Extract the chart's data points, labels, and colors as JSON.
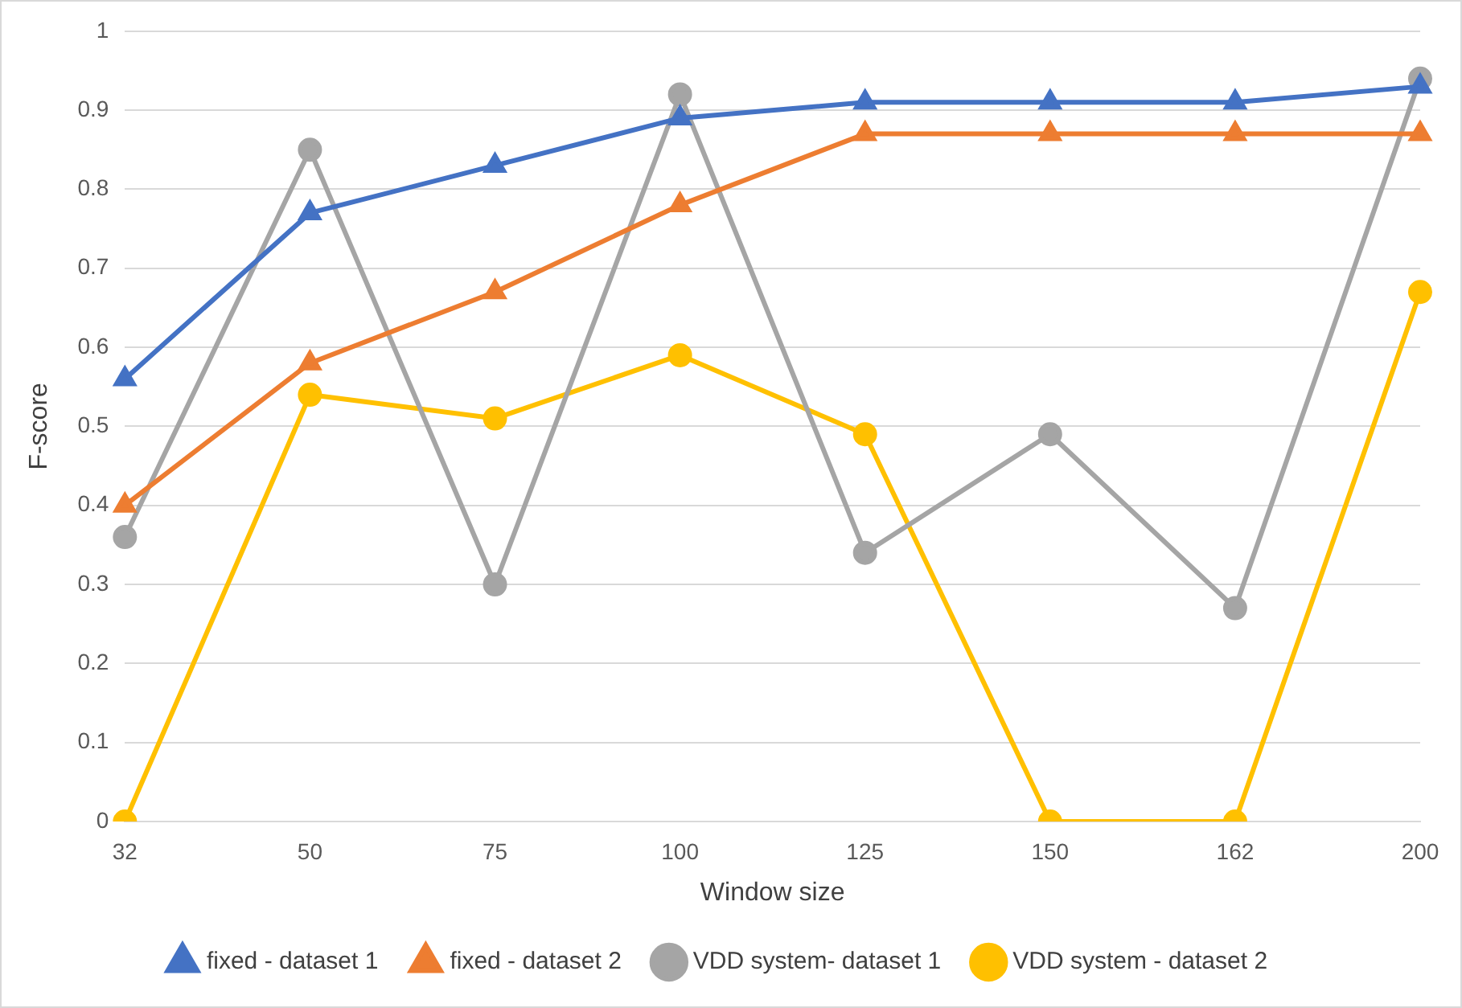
{
  "chart_data": {
    "type": "line",
    "xlabel": "Window size",
    "ylabel": "F-score",
    "categories": [
      "32",
      "50",
      "75",
      "100",
      "125",
      "150",
      "162",
      "200"
    ],
    "ylim": [
      0,
      1
    ],
    "yticks": [
      0,
      0.1,
      0.2,
      0.3,
      0.4,
      0.5,
      0.6,
      0.7,
      0.8,
      0.9,
      1
    ],
    "grid": "y",
    "legend": "bottom",
    "series": [
      {
        "name": "fixed - dataset 1",
        "color": "#4472c4",
        "marker": "triangle",
        "values": [
          0.56,
          0.77,
          0.83,
          0.89,
          0.91,
          0.91,
          0.91,
          0.93
        ]
      },
      {
        "name": "fixed - dataset 2",
        "color": "#ed7d31",
        "marker": "triangle",
        "values": [
          0.4,
          0.58,
          0.67,
          0.78,
          0.87,
          0.87,
          0.87,
          0.87
        ]
      },
      {
        "name": "VDD system- dataset 1",
        "color": "#a5a5a5",
        "marker": "circle",
        "values": [
          0.36,
          0.85,
          0.3,
          0.92,
          0.34,
          0.49,
          0.27,
          0.94
        ]
      },
      {
        "name": "VDD system - dataset 2",
        "color": "#ffc000",
        "marker": "circle",
        "values": [
          0,
          0.54,
          0.51,
          0.59,
          0.49,
          0,
          0,
          0.67
        ]
      }
    ]
  }
}
